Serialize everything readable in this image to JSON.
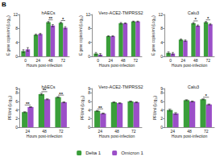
{
  "panel_label": "B",
  "chart_data": [
    {
      "type": "bar",
      "title": "hAECs",
      "x_label": "Hours post-infection",
      "y_label": "E gene copies/ml (Log₁₀)",
      "categories": [
        "0",
        "24",
        "48",
        "72"
      ],
      "series": [
        {
          "name": "Delta 1",
          "color": "#3a9e3a",
          "values": [
            1.5,
            6.2,
            9.8,
            9.6
          ],
          "errors": [
            0.4,
            0.2,
            0.2,
            0.2
          ]
        },
        {
          "name": "Omicron 1",
          "color": "#9b4fc8",
          "values": [
            2.0,
            6.4,
            8.8,
            8.2
          ],
          "errors": [
            0.5,
            0.2,
            0.3,
            0.3
          ]
        }
      ],
      "ylim": [
        0,
        12
      ],
      "yticks": [
        0,
        4,
        8,
        12
      ],
      "grid": false,
      "legend": "bottom",
      "annotations": [
        {
          "category": "48",
          "label": "**"
        },
        {
          "category": "72",
          "label": "*"
        }
      ]
    },
    {
      "type": "bar",
      "title": "Vero-ACE2-TMPRSS2",
      "x_label": "Hours post-infection",
      "y_label": "E gene copies/ml (Log₁₀)",
      "categories": [
        "0",
        "24",
        "48",
        "72"
      ],
      "series": [
        {
          "name": "Delta 1",
          "color": "#3a9e3a",
          "values": [
            0.8,
            5.8,
            9.5,
            10.0
          ],
          "errors": [
            0.3,
            0.1,
            0.2,
            0.1
          ]
        },
        {
          "name": "Omicron 1",
          "color": "#9b4fc8",
          "values": [
            0.5,
            5.8,
            9.5,
            10.0
          ],
          "errors": [
            0.3,
            0.1,
            0.1,
            0.1
          ]
        }
      ],
      "ylim": [
        0,
        12
      ],
      "yticks": [
        0,
        4,
        8,
        12
      ],
      "grid": false,
      "legend": "bottom",
      "annotations": []
    },
    {
      "type": "bar",
      "title": "Calu3",
      "x_label": "Hours post-infection",
      "y_label": "E gene copies/ml (Log₁₀)",
      "categories": [
        "0",
        "24",
        "48",
        "72"
      ],
      "series": [
        {
          "name": "Delta 1",
          "color": "#3a9e3a",
          "values": [
            1.0,
            4.8,
            9.5,
            9.8
          ],
          "errors": [
            0.3,
            0.2,
            0.2,
            0.2
          ]
        },
        {
          "name": "Omicron 1",
          "color": "#9b4fc8",
          "values": [
            0.8,
            4.5,
            8.8,
            9.2
          ],
          "errors": [
            0.3,
            0.2,
            0.2,
            0.2
          ]
        }
      ],
      "ylim": [
        0,
        12
      ],
      "yticks": [
        0,
        4,
        8,
        12
      ],
      "grid": false,
      "legend": "bottom",
      "annotations": [
        {
          "category": "48",
          "label": "*"
        },
        {
          "category": "72",
          "label": "*"
        }
      ]
    },
    {
      "type": "bar",
      "title": "hAECs",
      "x_label": "Hours post-infection",
      "y_label": "PFU/ml (Log₁₀)",
      "categories": [
        "24",
        "48",
        "72"
      ],
      "series": [
        {
          "name": "Delta 1",
          "color": "#3a9e3a",
          "values": [
            3.5,
            7.7,
            7.0
          ],
          "errors": [
            0.1,
            0.2,
            0.1
          ]
        },
        {
          "name": "Omicron 1",
          "color": "#9b4fc8",
          "values": [
            4.7,
            6.5,
            5.8
          ],
          "errors": [
            0.1,
            0.1,
            0.1
          ]
        }
      ],
      "ylim": [
        0,
        9
      ],
      "yticks": [
        0,
        2,
        4,
        6,
        8
      ],
      "grid": false,
      "legend": "bottom",
      "annotations": [
        {
          "category": "24",
          "label": "**"
        },
        {
          "category": "48",
          "label": "**"
        },
        {
          "category": "72",
          "label": "**"
        }
      ]
    },
    {
      "type": "bar",
      "title": "Vero-ACE2-TMPRSS2",
      "x_label": "Hours post-infection",
      "y_label": "PFU/ml (Log₁₀)",
      "categories": [
        "24",
        "48",
        "72"
      ],
      "series": [
        {
          "name": "Delta 1",
          "color": "#3a9e3a",
          "values": [
            3.8,
            5.8,
            6.0
          ],
          "errors": [
            0.1,
            0.1,
            0.1
          ]
        },
        {
          "name": "Omicron 1",
          "color": "#9b4fc8",
          "values": [
            3.2,
            5.6,
            5.8
          ],
          "errors": [
            0.1,
            0.1,
            0.1
          ]
        }
      ],
      "ylim": [
        0,
        9
      ],
      "yticks": [
        0,
        2,
        4,
        6,
        8
      ],
      "grid": false,
      "legend": "bottom",
      "annotations": [
        {
          "category": "24",
          "label": "**"
        }
      ]
    },
    {
      "type": "bar",
      "title": "Calu3",
      "x_label": "Hours post-infection",
      "y_label": "PFU/ml (Log₁₀)",
      "categories": [
        "24",
        "48",
        "72"
      ],
      "series": [
        {
          "name": "Delta 1",
          "color": "#3a9e3a",
          "values": [
            4.0,
            6.3,
            6.5
          ],
          "errors": [
            0.2,
            0.1,
            0.1
          ]
        },
        {
          "name": "Omicron 1",
          "color": "#9b4fc8",
          "values": [
            3.2,
            6.0,
            5.3
          ],
          "errors": [
            0.2,
            0.1,
            0.1
          ]
        }
      ],
      "ylim": [
        0,
        9
      ],
      "yticks": [
        0,
        2,
        4,
        6,
        8
      ],
      "grid": false,
      "legend": "bottom",
      "annotations": [
        {
          "category": "72",
          "label": "*"
        }
      ]
    }
  ]
}
